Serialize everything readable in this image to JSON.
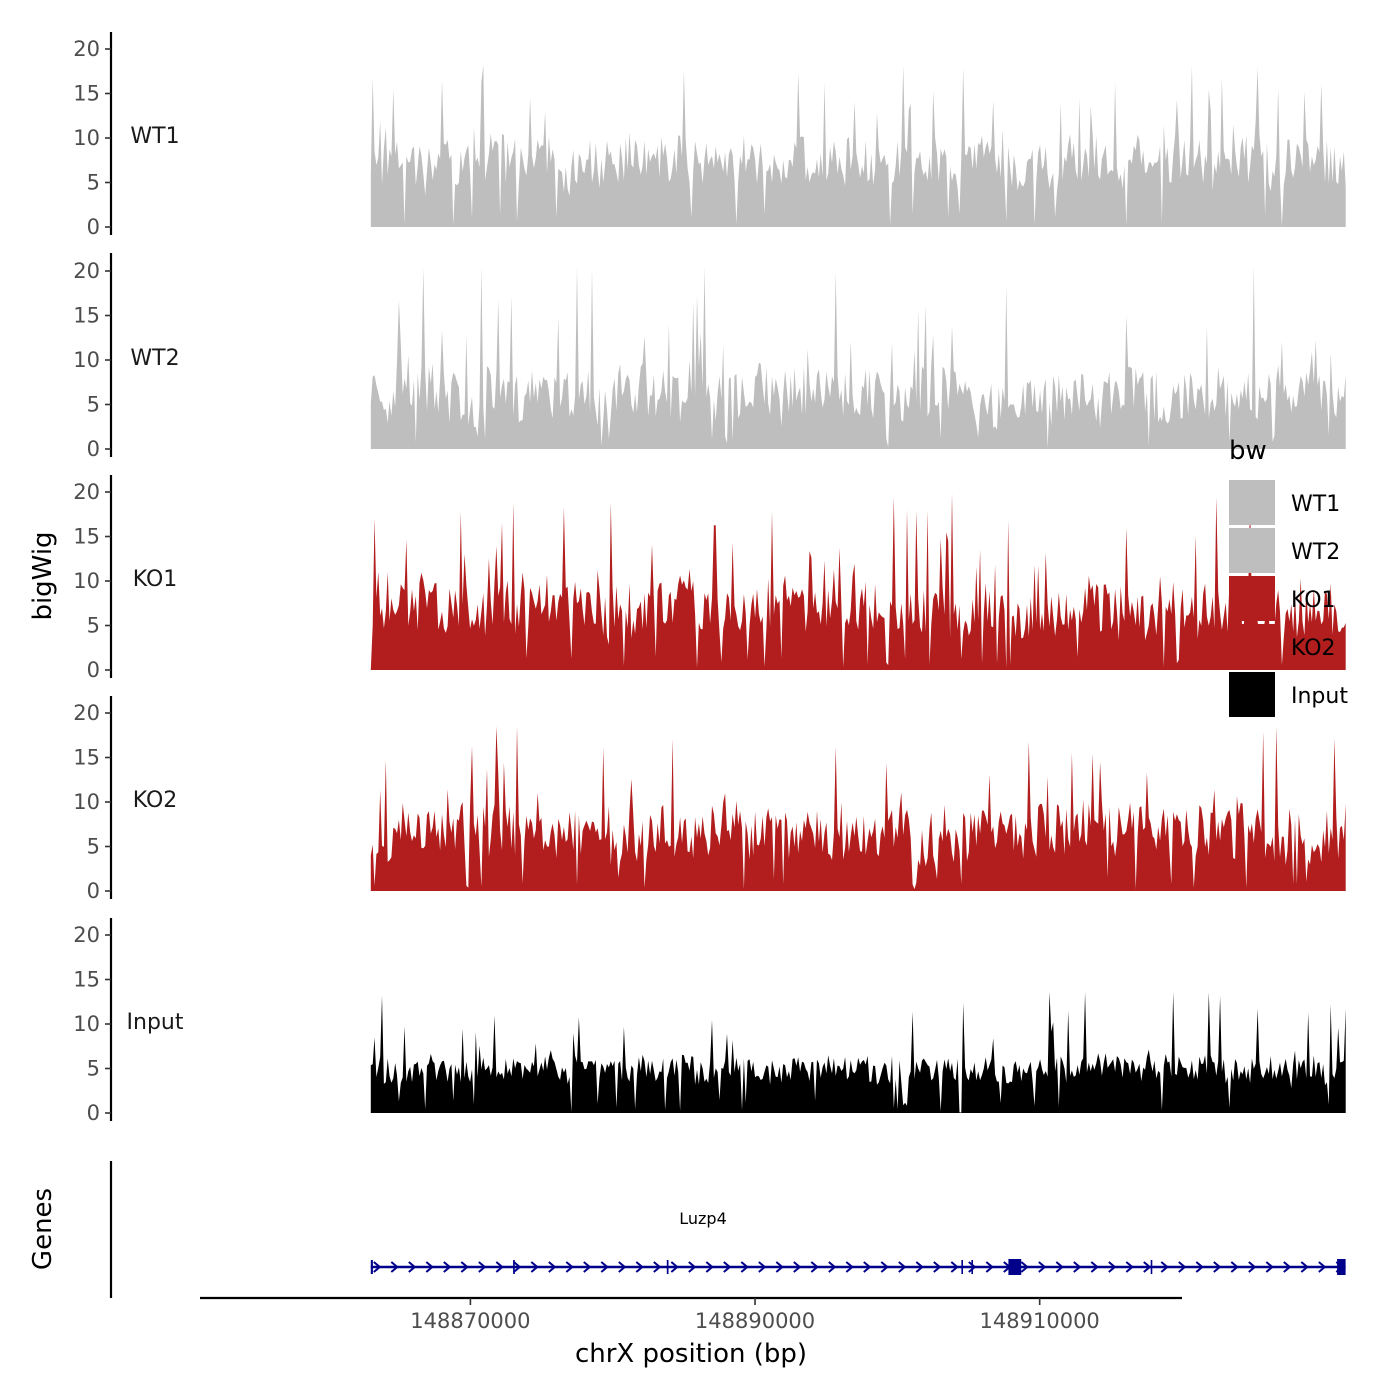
{
  "chart_data": {
    "type": "area",
    "title": "",
    "ylabel": "bigWig",
    "xlabel": "chrX position (bp)",
    "gene_panel_label": "Genes",
    "ylim": [
      0,
      21
    ],
    "yticks": [
      0,
      5,
      10,
      15,
      20
    ],
    "xlim": [
      148851000,
      148920000
    ],
    "xticks": [
      {
        "value": 148870000,
        "label": "148870000"
      },
      {
        "value": 148890000,
        "label": "148890000"
      },
      {
        "value": 148910000,
        "label": "148910000"
      }
    ],
    "signal_range": [
      148863000,
      148931500
    ],
    "legend": {
      "title": "bw",
      "entries": [
        {
          "label": "WT1",
          "color": "#bebebe"
        },
        {
          "label": "WT2",
          "color": "#bebebe"
        },
        {
          "label": "KO1",
          "color": "#b21e1e"
        },
        {
          "label": "KO2",
          "color": "#b21e1e"
        },
        {
          "label": "Input",
          "color": "#000000"
        }
      ]
    },
    "series": [
      {
        "name": "WT1",
        "color": "#bebebe",
        "seed": 11,
        "base": 7.5,
        "spread": 5.5,
        "spike_max": 18.2,
        "spike_rate": 0.09
      },
      {
        "name": "WT2",
        "color": "#bebebe",
        "seed": 23,
        "base": 6.5,
        "spread": 6.0,
        "spike_max": 20.5,
        "spike_rate": 0.09
      },
      {
        "name": "KO1",
        "color": "#b21e1e",
        "seed": 37,
        "base": 7.0,
        "spread": 6.0,
        "spike_max": 20.2,
        "spike_rate": 0.1
      },
      {
        "name": "KO2",
        "color": "#b21e1e",
        "seed": 53,
        "base": 7.0,
        "spread": 6.0,
        "spike_max": 18.5,
        "spike_rate": 0.1
      },
      {
        "name": "Input",
        "color": "#000000",
        "seed": 71,
        "base": 5.0,
        "spread": 3.0,
        "spike_max": 13.6,
        "spike_rate": 0.08
      }
    ],
    "gene": {
      "name": "Luzp4",
      "color": "#00008b",
      "start": 148863000,
      "end": 148931500,
      "exons": [
        {
          "start": 148863000,
          "end": 148863150
        },
        {
          "start": 148873000,
          "end": 148873120
        },
        {
          "start": 148883800,
          "end": 148883920
        },
        {
          "start": 148904500,
          "end": 148904600
        },
        {
          "start": 148905200,
          "end": 148905300
        },
        {
          "start": 148907800,
          "end": 148908700
        },
        {
          "start": 148917800,
          "end": 148917900
        },
        {
          "start": 148930900,
          "end": 148931500
        }
      ]
    }
  }
}
